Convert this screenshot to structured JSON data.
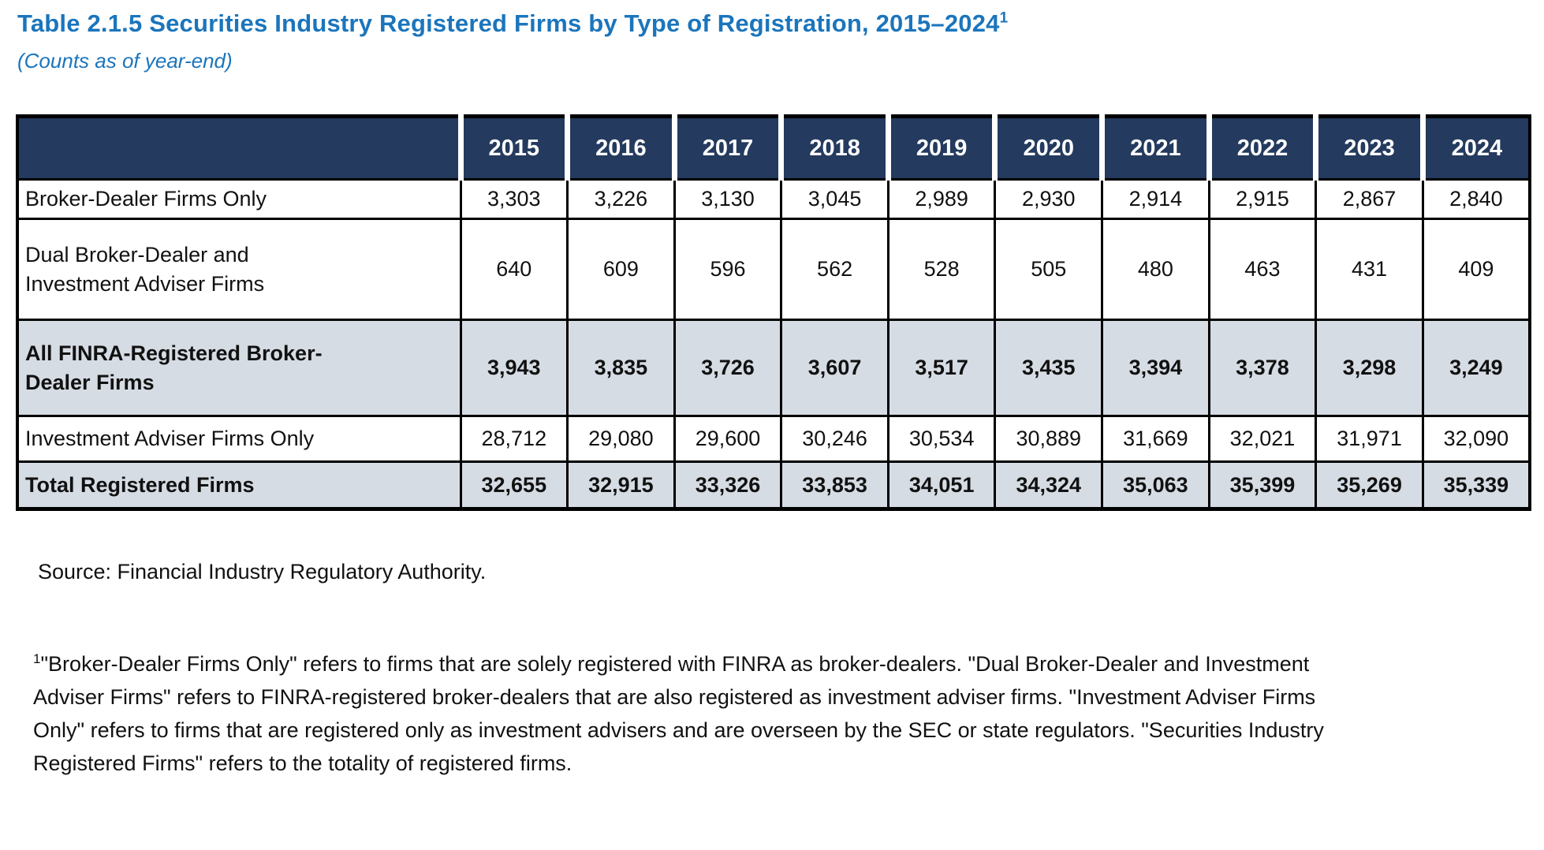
{
  "header": {
    "title": "Table 2.1.5 Securities Industry Registered Firms by Type of Registration, 2015–2024",
    "title_superscript": "1",
    "subtitle": "(Counts as of year-end)"
  },
  "table": {
    "years": [
      "2015",
      "2016",
      "2017",
      "2018",
      "2019",
      "2020",
      "2021",
      "2022",
      "2023",
      "2024"
    ],
    "rows": [
      {
        "label": "Broker-Dealer Firms Only",
        "emphasis": false,
        "values": [
          "3,303",
          "3,226",
          "3,130",
          "3,045",
          "2,989",
          "2,930",
          "2,914",
          "2,915",
          "2,867",
          "2,840"
        ]
      },
      {
        "label": "Dual Broker-Dealer and\nInvestment Adviser Firms",
        "emphasis": false,
        "values": [
          "640",
          "609",
          "596",
          "562",
          "528",
          "505",
          "480",
          "463",
          "431",
          "409"
        ]
      },
      {
        "label": "All FINRA-Registered Broker-\nDealer Firms",
        "emphasis": true,
        "values": [
          "3,943",
          "3,835",
          "3,726",
          "3,607",
          "3,517",
          "3,435",
          "3,394",
          "3,378",
          "3,298",
          "3,249"
        ]
      },
      {
        "label": "Investment Adviser Firms Only",
        "emphasis": false,
        "values": [
          "28,712",
          "29,080",
          "29,600",
          "30,246",
          "30,534",
          "30,889",
          "31,669",
          "32,021",
          "31,971",
          "32,090"
        ]
      },
      {
        "label": "Total Registered Firms",
        "emphasis": true,
        "values": [
          "32,655",
          "32,915",
          "33,326",
          "33,853",
          "34,051",
          "34,324",
          "35,063",
          "35,399",
          "35,269",
          "35,339"
        ]
      }
    ]
  },
  "source": "Source: Financial Industry Regulatory Authority.",
  "footnote": {
    "marker": "1",
    "text": "\"Broker-Dealer Firms Only\" refers to firms that are solely registered with FINRA as broker-dealers. \"Dual Broker-Dealer and Investment Adviser Firms\" refers to FINRA-registered broker-dealers that are also registered as investment adviser firms. \"Investment Adviser Firms Only\" refers to firms that are registered only as investment advisers and are overseen by the SEC or state regulators. \"Securities Industry Registered Firms\" refers to the totality of registered firms."
  },
  "colors": {
    "title_blue": "#1B75BC",
    "header_navy": "#243A5E",
    "shaded_row": "#D6DCE4",
    "border_black": "#000000"
  }
}
